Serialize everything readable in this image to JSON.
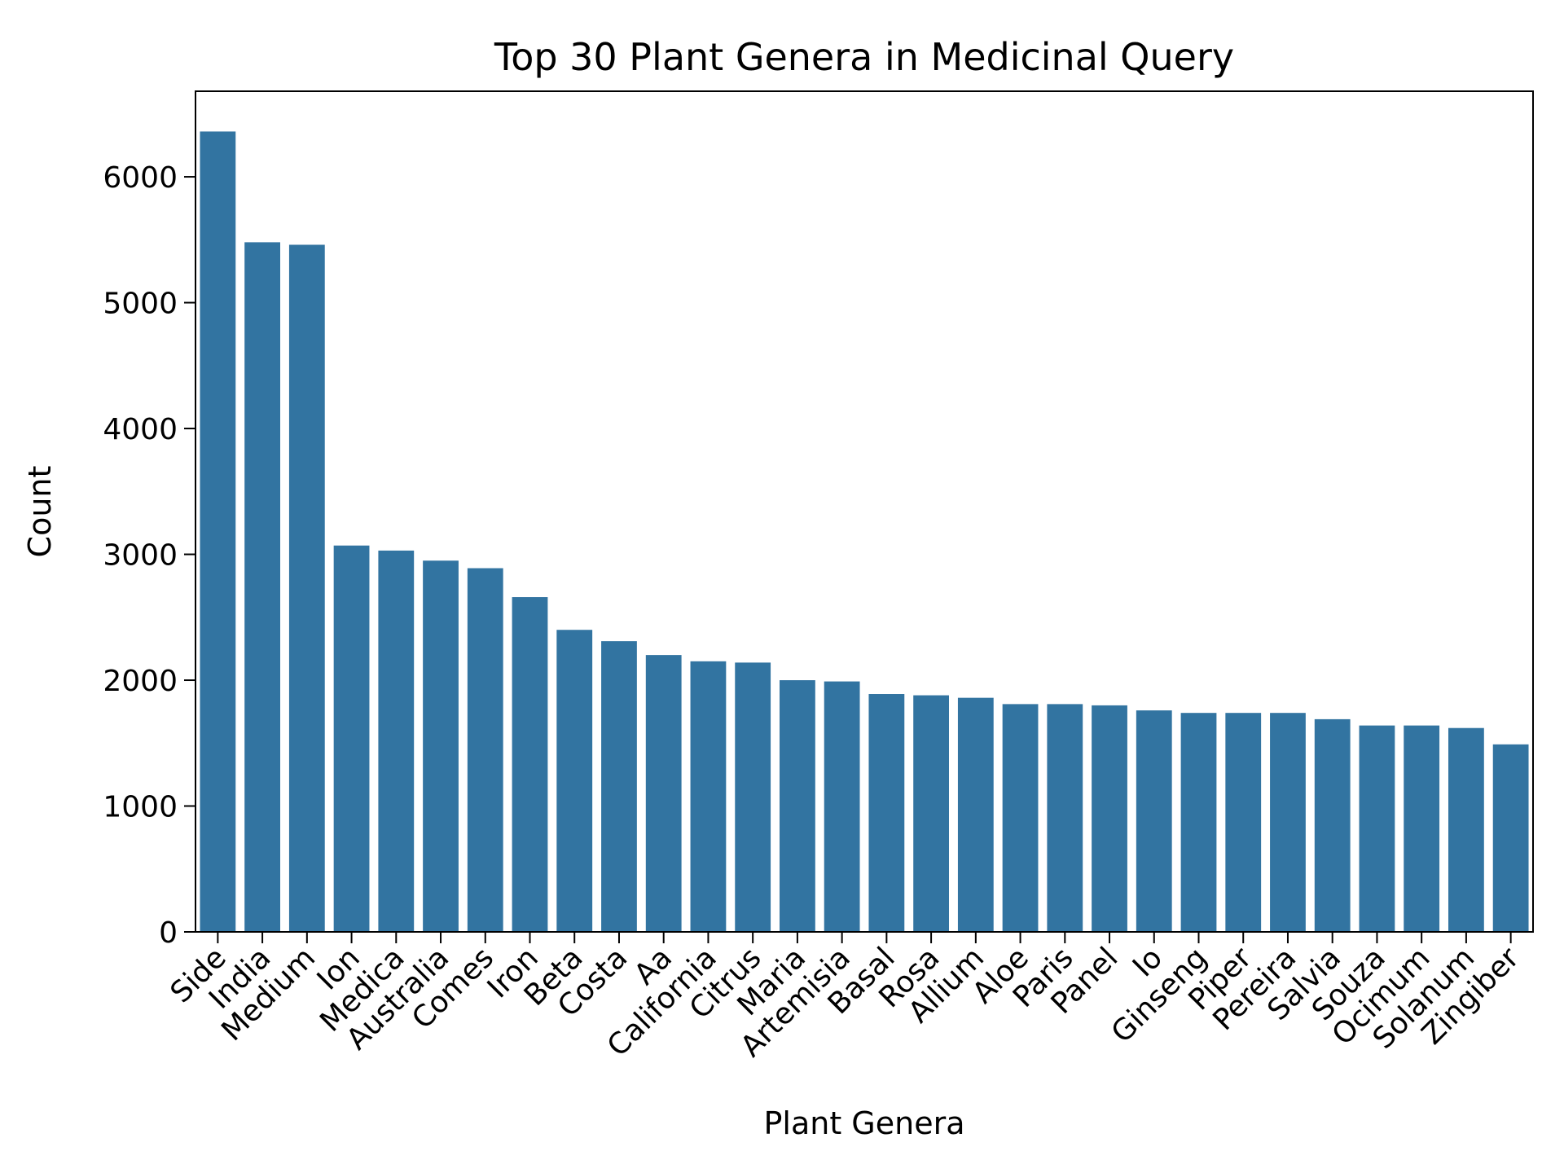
{
  "chart_data": {
    "type": "bar",
    "title": "Top 30 Plant Genera in Medicinal Query",
    "xlabel": "Plant Genera",
    "ylabel": "Count",
    "ylim": [
      0,
      6680
    ],
    "yticks": [
      0,
      1000,
      2000,
      3000,
      4000,
      5000,
      6000
    ],
    "grid": false,
    "legend": "none",
    "bar_color": "#3274a1",
    "categories": [
      "Side",
      "India",
      "Medium",
      "Ion",
      "Medica",
      "Australia",
      "Comes",
      "Iron",
      "Beta",
      "Costa",
      "Aa",
      "California",
      "Citrus",
      "Maria",
      "Artemisia",
      "Basal",
      "Rosa",
      "Allium",
      "Aloe",
      "Paris",
      "Panel",
      "Io",
      "Ginseng",
      "Piper",
      "Pereira",
      "Salvia",
      "Souza",
      "Ocimum",
      "Solanum",
      "Zingiber"
    ],
    "values": [
      6360,
      5480,
      5460,
      3070,
      3030,
      2950,
      2890,
      2660,
      2400,
      2310,
      2200,
      2150,
      2140,
      2000,
      1990,
      1890,
      1880,
      1860,
      1810,
      1810,
      1800,
      1760,
      1740,
      1740,
      1740,
      1690,
      1640,
      1640,
      1620,
      1490
    ]
  }
}
